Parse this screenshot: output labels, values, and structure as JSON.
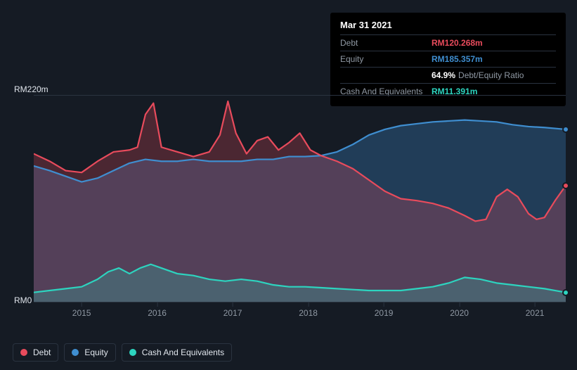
{
  "tooltip": {
    "date": "Mar 31 2021",
    "rows": [
      {
        "label": "Debt",
        "value": "RM120.268m",
        "class": "value-debt",
        "sublabel": ""
      },
      {
        "label": "Equity",
        "value": "RM185.357m",
        "class": "value-equity",
        "sublabel": ""
      },
      {
        "label": "",
        "value": "64.9%",
        "class": "value-ratio",
        "sublabel": "Debt/Equity Ratio"
      },
      {
        "label": "Cash And Equivalents",
        "value": "RM11.391m",
        "class": "value-cash",
        "sublabel": ""
      }
    ]
  },
  "chart": {
    "type": "area",
    "background_color": "#151b24",
    "grid_color": "#2a3340",
    "text_color": "#e0e5ec",
    "muted_text_color": "#8f98a3",
    "y_axis": {
      "min": 0,
      "max": 220,
      "labels": {
        "top": "RM220m",
        "bottom": "RM0"
      },
      "label_fontsize": 12
    },
    "x_axis": {
      "ticks": [
        {
          "label": "2015",
          "pct": 9.0
        },
        {
          "label": "2016",
          "pct": 23.2
        },
        {
          "label": "2017",
          "pct": 37.4
        },
        {
          "label": "2018",
          "pct": 51.6
        },
        {
          "label": "2019",
          "pct": 65.8
        },
        {
          "label": "2020",
          "pct": 80.0
        },
        {
          "label": "2021",
          "pct": 94.2
        }
      ],
      "label_fontsize": 12
    },
    "series": [
      {
        "name": "Equity",
        "stroke": "#3f8ed0",
        "fill": "#3f8ed0",
        "fill_opacity": 0.3,
        "stroke_width": 2.2,
        "points": [
          [
            0,
            145
          ],
          [
            3,
            140
          ],
          [
            6,
            134
          ],
          [
            9,
            128
          ],
          [
            12,
            132
          ],
          [
            15,
            140
          ],
          [
            18,
            148
          ],
          [
            21,
            152
          ],
          [
            24,
            150
          ],
          [
            27,
            150
          ],
          [
            30,
            152
          ],
          [
            33,
            150
          ],
          [
            36,
            150
          ],
          [
            39,
            150
          ],
          [
            42,
            152
          ],
          [
            45,
            152
          ],
          [
            48,
            155
          ],
          [
            51,
            155
          ],
          [
            54,
            156
          ],
          [
            57,
            160
          ],
          [
            60,
            168
          ],
          [
            63,
            178
          ],
          [
            66,
            184
          ],
          [
            69,
            188
          ],
          [
            72,
            190
          ],
          [
            75,
            192
          ],
          [
            78,
            193
          ],
          [
            81,
            194
          ],
          [
            84,
            193
          ],
          [
            87,
            192
          ],
          [
            90,
            189
          ],
          [
            93,
            187
          ],
          [
            96,
            186
          ],
          [
            100,
            184
          ]
        ],
        "marker_at": {
          "x_pct": 100,
          "y_val": 184
        }
      },
      {
        "name": "Debt",
        "stroke": "#e84b5c",
        "fill": "#e84b5c",
        "fill_opacity": 0.26,
        "stroke_width": 2.2,
        "points": [
          [
            0,
            158
          ],
          [
            3,
            150
          ],
          [
            6,
            140
          ],
          [
            9,
            138
          ],
          [
            12,
            150
          ],
          [
            15,
            160
          ],
          [
            18,
            162
          ],
          [
            19.5,
            165
          ],
          [
            21,
            200
          ],
          [
            22.5,
            212
          ],
          [
            24,
            165
          ],
          [
            27,
            160
          ],
          [
            30,
            155
          ],
          [
            33,
            160
          ],
          [
            35,
            178
          ],
          [
            36.5,
            214
          ],
          [
            38,
            180
          ],
          [
            40,
            158
          ],
          [
            42,
            172
          ],
          [
            44,
            176
          ],
          [
            46,
            162
          ],
          [
            48,
            170
          ],
          [
            50,
            180
          ],
          [
            52,
            162
          ],
          [
            54,
            156
          ],
          [
            57,
            150
          ],
          [
            60,
            142
          ],
          [
            63,
            130
          ],
          [
            66,
            118
          ],
          [
            69,
            110
          ],
          [
            72,
            108
          ],
          [
            75,
            105
          ],
          [
            78,
            100
          ],
          [
            81,
            92
          ],
          [
            83,
            86
          ],
          [
            85,
            88
          ],
          [
            87,
            112
          ],
          [
            89,
            120
          ],
          [
            91,
            112
          ],
          [
            93,
            94
          ],
          [
            94.5,
            88
          ],
          [
            96,
            90
          ],
          [
            98,
            108
          ],
          [
            100,
            124
          ]
        ],
        "marker_at": {
          "x_pct": 100,
          "y_val": 124
        }
      },
      {
        "name": "Cash And Equivalents",
        "stroke": "#2dd4bf",
        "fill": "#2dd4bf",
        "fill_opacity": 0.22,
        "stroke_width": 2.2,
        "points": [
          [
            0,
            10
          ],
          [
            3,
            12
          ],
          [
            6,
            14
          ],
          [
            9,
            16
          ],
          [
            12,
            24
          ],
          [
            14,
            32
          ],
          [
            16,
            36
          ],
          [
            18,
            30
          ],
          [
            20,
            36
          ],
          [
            22,
            40
          ],
          [
            24,
            36
          ],
          [
            27,
            30
          ],
          [
            30,
            28
          ],
          [
            33,
            24
          ],
          [
            36,
            22
          ],
          [
            39,
            24
          ],
          [
            42,
            22
          ],
          [
            45,
            18
          ],
          [
            48,
            16
          ],
          [
            51,
            16
          ],
          [
            54,
            15
          ],
          [
            57,
            14
          ],
          [
            60,
            13
          ],
          [
            63,
            12
          ],
          [
            66,
            12
          ],
          [
            69,
            12
          ],
          [
            72,
            14
          ],
          [
            75,
            16
          ],
          [
            78,
            20
          ],
          [
            81,
            26
          ],
          [
            84,
            24
          ],
          [
            87,
            20
          ],
          [
            90,
            18
          ],
          [
            93,
            16
          ],
          [
            96,
            14
          ],
          [
            100,
            10
          ]
        ],
        "marker_at": {
          "x_pct": 100,
          "y_val": 10
        }
      }
    ]
  },
  "legend": {
    "items": [
      {
        "label": "Debt",
        "color": "#e84b5c"
      },
      {
        "label": "Equity",
        "color": "#3f8ed0"
      },
      {
        "label": "Cash And Equivalents",
        "color": "#2dd4bf"
      }
    ]
  }
}
